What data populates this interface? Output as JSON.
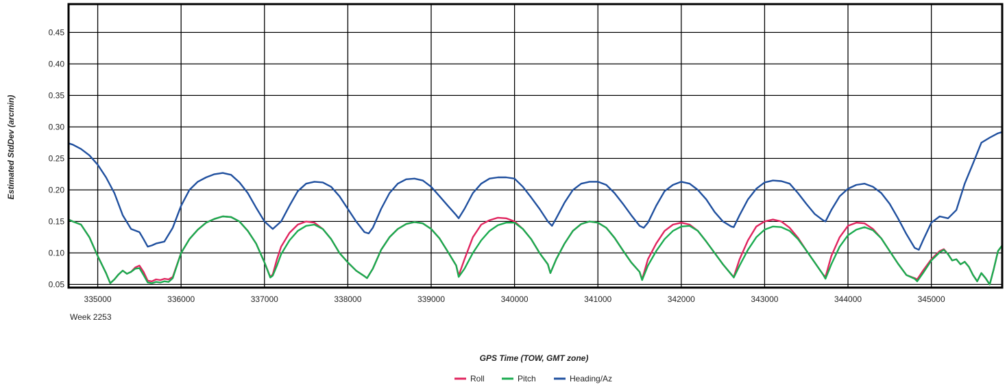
{
  "chart_data": {
    "type": "line",
    "title": "",
    "xlabel": "GPS Time (TOW, GMT zone)",
    "ylabel": "Estimated StdDev (arcmin)",
    "x_sublabel": "Week 2253",
    "xlim": [
      334650,
      345850
    ],
    "ylim": [
      0.045,
      0.495
    ],
    "x_ticks": [
      335000,
      336000,
      337000,
      338000,
      339000,
      340000,
      341000,
      342000,
      343000,
      344000,
      345000
    ],
    "y_ticks": [
      0.05,
      0.1,
      0.15,
      0.2,
      0.25,
      0.3,
      0.35,
      0.4,
      0.45
    ],
    "y_tick_labels": [
      "0.05",
      "0.10",
      "0.15",
      "0.20",
      "0.25",
      "0.30",
      "0.35",
      "0.40",
      "0.45"
    ],
    "grid": true,
    "legend_position": "bottom-center",
    "series": [
      {
        "name": "Roll",
        "color": "#e0245e",
        "x": [
          334650,
          334700,
          334800,
          334900,
          335000,
          335100,
          335150,
          335200,
          335250,
          335300,
          335350,
          335400,
          335450,
          335500,
          335550,
          335600,
          335650,
          335700,
          335750,
          335800,
          335850,
          335900,
          336000,
          336100,
          336200,
          336300,
          336400,
          336500,
          336600,
          336700,
          336800,
          336900,
          337000,
          337070,
          337100,
          337150,
          337200,
          337300,
          337400,
          337500,
          337600,
          337700,
          337800,
          337900,
          338000,
          338100,
          338200,
          338230,
          338300,
          338400,
          338500,
          338600,
          338700,
          338800,
          338900,
          339000,
          339100,
          339200,
          339300,
          339330,
          339400,
          339500,
          339600,
          339700,
          339800,
          339900,
          340000,
          340100,
          340200,
          340300,
          340400,
          340430,
          340500,
          340600,
          340700,
          340800,
          340900,
          341000,
          341100,
          341200,
          341300,
          341400,
          341500,
          341530,
          341600,
          341700,
          341800,
          341900,
          342000,
          342100,
          342200,
          342300,
          342400,
          342500,
          342600,
          342630,
          342700,
          342800,
          342900,
          343000,
          343100,
          343200,
          343300,
          343400,
          343500,
          343600,
          343700,
          343730,
          343800,
          343900,
          344000,
          344100,
          344200,
          344300,
          344400,
          344500,
          344600,
          344700,
          344800,
          344830,
          344900,
          345000,
          345100,
          345150,
          345200,
          345250,
          345300,
          345350,
          345400,
          345450,
          345500,
          345550,
          345600,
          345650,
          345700,
          345750,
          345800,
          345850
        ],
        "y": [
          0.153,
          0.15,
          0.145,
          0.125,
          0.095,
          0.068,
          0.052,
          0.058,
          0.066,
          0.072,
          0.067,
          0.07,
          0.077,
          0.08,
          0.07,
          0.056,
          0.055,
          0.058,
          0.057,
          0.059,
          0.058,
          0.062,
          0.1,
          0.122,
          0.137,
          0.148,
          0.154,
          0.158,
          0.157,
          0.15,
          0.135,
          0.115,
          0.085,
          0.062,
          0.066,
          0.09,
          0.11,
          0.132,
          0.145,
          0.15,
          0.148,
          0.138,
          0.122,
          0.1,
          0.085,
          0.072,
          0.063,
          0.06,
          0.075,
          0.105,
          0.125,
          0.138,
          0.146,
          0.149,
          0.147,
          0.138,
          0.123,
          0.102,
          0.08,
          0.064,
          0.09,
          0.125,
          0.145,
          0.152,
          0.156,
          0.155,
          0.15,
          0.138,
          0.122,
          0.1,
          0.082,
          0.068,
          0.09,
          0.115,
          0.135,
          0.146,
          0.15,
          0.148,
          0.14,
          0.124,
          0.104,
          0.085,
          0.07,
          0.058,
          0.09,
          0.115,
          0.135,
          0.145,
          0.148,
          0.145,
          0.135,
          0.118,
          0.1,
          0.082,
          0.066,
          0.062,
          0.09,
          0.12,
          0.142,
          0.15,
          0.153,
          0.15,
          0.14,
          0.124,
          0.104,
          0.085,
          0.066,
          0.062,
          0.095,
          0.125,
          0.143,
          0.148,
          0.147,
          0.138,
          0.123,
          0.103,
          0.083,
          0.065,
          0.06,
          0.058,
          0.072,
          0.09,
          0.103,
          0.106,
          0.098,
          0.088,
          0.09,
          0.082,
          0.086,
          0.078,
          0.065,
          0.055,
          0.068,
          0.06,
          0.05,
          0.075,
          0.103,
          0.112
        ]
      },
      {
        "name": "Pitch",
        "color": "#1aab4f",
        "x": [
          334650,
          334700,
          334800,
          334900,
          335000,
          335100,
          335150,
          335200,
          335250,
          335300,
          335350,
          335400,
          335450,
          335500,
          335550,
          335600,
          335650,
          335700,
          335750,
          335800,
          335850,
          335900,
          336000,
          336100,
          336200,
          336300,
          336400,
          336500,
          336600,
          336700,
          336800,
          336900,
          337000,
          337070,
          337100,
          337150,
          337200,
          337300,
          337400,
          337500,
          337600,
          337700,
          337800,
          337900,
          338000,
          338100,
          338200,
          338230,
          338300,
          338400,
          338500,
          338600,
          338700,
          338800,
          338900,
          339000,
          339100,
          339200,
          339300,
          339330,
          339400,
          339500,
          339600,
          339700,
          339800,
          339900,
          340000,
          340100,
          340200,
          340300,
          340400,
          340430,
          340500,
          340600,
          340700,
          340800,
          340900,
          341000,
          341100,
          341200,
          341300,
          341400,
          341500,
          341530,
          341600,
          341700,
          341800,
          341900,
          342000,
          342100,
          342200,
          342300,
          342400,
          342500,
          342600,
          342630,
          342700,
          342800,
          342900,
          343000,
          343100,
          343200,
          343300,
          343400,
          343500,
          343600,
          343700,
          343730,
          343800,
          343900,
          344000,
          344100,
          344200,
          344300,
          344400,
          344500,
          344600,
          344700,
          344800,
          344830,
          344900,
          345000,
          345100,
          345150,
          345200,
          345250,
          345300,
          345350,
          345400,
          345450,
          345500,
          345550,
          345600,
          345650,
          345700,
          345750,
          345800,
          345850
        ],
        "y": [
          0.153,
          0.15,
          0.145,
          0.125,
          0.095,
          0.068,
          0.052,
          0.058,
          0.066,
          0.072,
          0.067,
          0.07,
          0.075,
          0.076,
          0.065,
          0.053,
          0.052,
          0.054,
          0.053,
          0.055,
          0.054,
          0.06,
          0.1,
          0.122,
          0.137,
          0.148,
          0.154,
          0.158,
          0.157,
          0.15,
          0.135,
          0.115,
          0.085,
          0.061,
          0.064,
          0.08,
          0.098,
          0.12,
          0.135,
          0.143,
          0.145,
          0.138,
          0.122,
          0.1,
          0.085,
          0.072,
          0.063,
          0.06,
          0.075,
          0.105,
          0.125,
          0.138,
          0.146,
          0.149,
          0.147,
          0.138,
          0.123,
          0.102,
          0.08,
          0.062,
          0.075,
          0.1,
          0.12,
          0.135,
          0.144,
          0.148,
          0.148,
          0.138,
          0.122,
          0.1,
          0.082,
          0.068,
          0.09,
          0.115,
          0.135,
          0.146,
          0.15,
          0.148,
          0.14,
          0.124,
          0.104,
          0.085,
          0.07,
          0.057,
          0.08,
          0.103,
          0.122,
          0.135,
          0.142,
          0.143,
          0.135,
          0.118,
          0.1,
          0.082,
          0.066,
          0.061,
          0.08,
          0.105,
          0.125,
          0.137,
          0.142,
          0.141,
          0.135,
          0.122,
          0.104,
          0.085,
          0.066,
          0.059,
          0.082,
          0.11,
          0.128,
          0.137,
          0.141,
          0.136,
          0.123,
          0.103,
          0.083,
          0.065,
          0.059,
          0.055,
          0.068,
          0.088,
          0.101,
          0.105,
          0.098,
          0.088,
          0.09,
          0.082,
          0.086,
          0.078,
          0.065,
          0.055,
          0.068,
          0.06,
          0.05,
          0.075,
          0.103,
          0.112
        ]
      },
      {
        "name": "Heading/Az",
        "color": "#1f4f9e",
        "x": [
          334650,
          334700,
          334800,
          334900,
          335000,
          335100,
          335200,
          335300,
          335400,
          335500,
          335550,
          335600,
          335650,
          335700,
          335800,
          335900,
          336000,
          336100,
          336200,
          336300,
          336400,
          336500,
          336600,
          336700,
          336800,
          336900,
          337000,
          337100,
          337200,
          337300,
          337400,
          337500,
          337600,
          337700,
          337800,
          337900,
          338000,
          338100,
          338200,
          338250,
          338300,
          338400,
          338500,
          338600,
          338700,
          338800,
          338900,
          339000,
          339100,
          339200,
          339300,
          339330,
          339400,
          339500,
          339600,
          339700,
          339800,
          339900,
          340000,
          340100,
          340200,
          340300,
          340400,
          340450,
          340500,
          340600,
          340700,
          340800,
          340900,
          341000,
          341100,
          341200,
          341300,
          341400,
          341500,
          341550,
          341600,
          341700,
          341800,
          341900,
          342000,
          342100,
          342200,
          342300,
          342400,
          342500,
          342600,
          342630,
          342700,
          342800,
          342900,
          343000,
          343100,
          343200,
          343300,
          343400,
          343500,
          343600,
          343700,
          343730,
          343800,
          343900,
          344000,
          344100,
          344200,
          344300,
          344400,
          344500,
          344600,
          344700,
          344800,
          344850,
          344900,
          345000,
          345100,
          345200,
          345300,
          345400,
          345500,
          345600,
          345700,
          345800,
          345850
        ],
        "y": [
          0.274,
          0.272,
          0.265,
          0.255,
          0.24,
          0.22,
          0.195,
          0.16,
          0.138,
          0.133,
          0.122,
          0.11,
          0.112,
          0.115,
          0.118,
          0.14,
          0.175,
          0.2,
          0.213,
          0.22,
          0.225,
          0.227,
          0.224,
          0.212,
          0.195,
          0.172,
          0.15,
          0.138,
          0.15,
          0.175,
          0.198,
          0.21,
          0.213,
          0.212,
          0.205,
          0.19,
          0.17,
          0.15,
          0.133,
          0.131,
          0.14,
          0.17,
          0.195,
          0.21,
          0.217,
          0.218,
          0.215,
          0.205,
          0.19,
          0.175,
          0.16,
          0.155,
          0.17,
          0.195,
          0.21,
          0.218,
          0.22,
          0.22,
          0.218,
          0.205,
          0.188,
          0.17,
          0.15,
          0.143,
          0.155,
          0.18,
          0.2,
          0.21,
          0.213,
          0.213,
          0.208,
          0.195,
          0.178,
          0.16,
          0.143,
          0.14,
          0.148,
          0.175,
          0.198,
          0.208,
          0.213,
          0.21,
          0.2,
          0.185,
          0.165,
          0.15,
          0.142,
          0.141,
          0.16,
          0.185,
          0.202,
          0.212,
          0.215,
          0.214,
          0.21,
          0.195,
          0.178,
          0.162,
          0.152,
          0.15,
          0.168,
          0.19,
          0.202,
          0.208,
          0.21,
          0.205,
          0.195,
          0.178,
          0.155,
          0.13,
          0.108,
          0.105,
          0.12,
          0.148,
          0.158,
          0.155,
          0.168,
          0.21,
          0.242,
          0.275,
          0.283,
          0.29,
          0.292
        ]
      }
    ]
  }
}
